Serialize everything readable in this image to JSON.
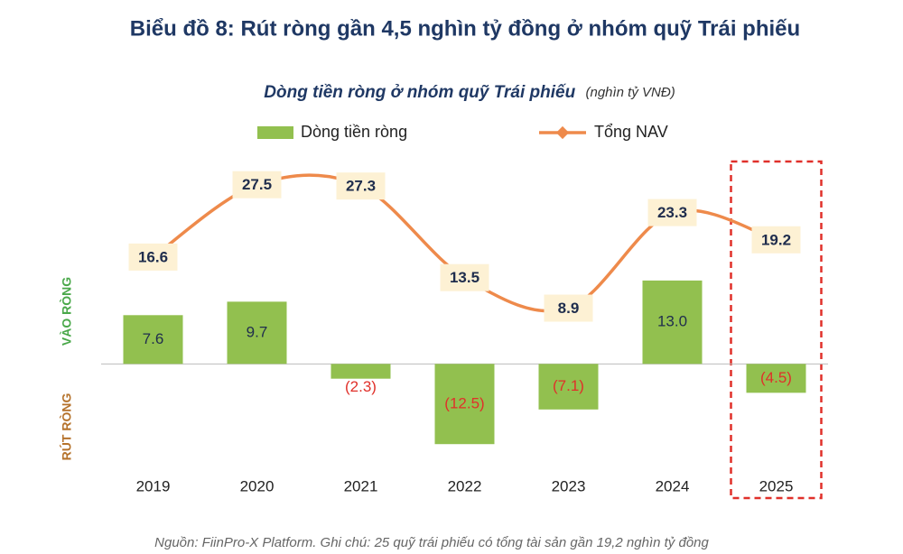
{
  "chart_data": {
    "type": "bar-line",
    "title": "Biểu đồ 8: Rút ròng gần 4,5 nghìn tỷ đồng ở nhóm quỹ Trái phiếu",
    "subtitle": "Dòng tiền ròng ở nhóm quỹ Trái phiếu",
    "unit": "(nghìn tỷ VNĐ)",
    "inflow_label": "VÀO RÒNG",
    "outflow_label": "RÚT RÒNG",
    "source": "Nguồn: FiinPro-X Platform. Ghi chú: 25 quỹ trái phiếu có tổng tài sản gần 19,2 nghìn tỷ đồng",
    "categories": [
      "2019",
      "2020",
      "2021",
      "2022",
      "2023",
      "2024",
      "2025"
    ],
    "series": [
      {
        "name": "Dòng tiền ròng",
        "type": "bar",
        "color": "#92c04f",
        "values": [
          7.6,
          9.7,
          -2.3,
          -12.5,
          -7.1,
          13.0,
          -4.5
        ],
        "value_labels": [
          "7.6",
          "9.7",
          "(2.3)",
          "(12.5)",
          "(7.1)",
          "13.0",
          "(4.5)"
        ]
      },
      {
        "name": "Tổng NAV",
        "type": "line",
        "axis": "y2",
        "color": "#ee8a4b",
        "values": [
          16.6,
          27.5,
          27.3,
          13.5,
          8.9,
          23.3,
          19.2
        ]
      }
    ],
    "ylim": [
      -15,
      30
    ],
    "y2lim": [
      -14,
      29.5
    ]
  }
}
